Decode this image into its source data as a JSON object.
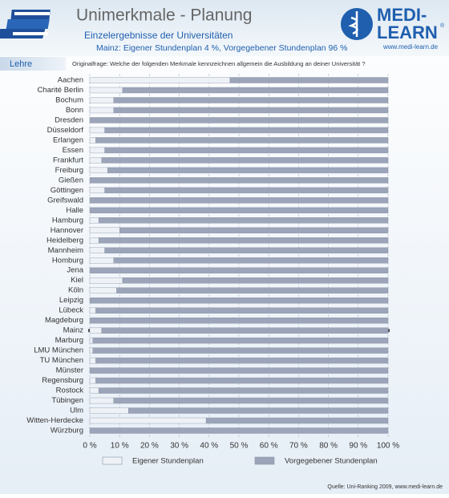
{
  "header": {
    "title": "Unimerkmale - Planung",
    "subtitle": "Einzelergebnisse der Universitäten",
    "note": "Mainz: Eigener Stundenplan 4 %, Vorgegebener Stundenplan 96 %",
    "section": "Lehre",
    "question": "Originalfrage: Welche der folgenden Merkmale kennzeichnen allgemein die Ausbildung an deiner Universität ?",
    "logo_top": "MEDI-",
    "logo_bottom": "LEARN",
    "logo_mark": "®",
    "logo_url": "www.medi-learn.de",
    "source": "Quelle: Uni-Ranking 2009, www.medi-learn.de"
  },
  "chart_data": {
    "type": "stacked-bar-horizontal",
    "categories": [
      "Aachen",
      "Charité Berlin",
      "Bochum",
      "Bonn",
      "Dresden",
      "Düsseldorf",
      "Erlangen",
      "Essen",
      "Frankfurt",
      "Freiburg",
      "Gießen",
      "Göttingen",
      "Greifswald",
      "Halle",
      "Hamburg",
      "Hannover",
      "Heidelberg",
      "Mannheim",
      "Homburg",
      "Jena",
      "Kiel",
      "Köln",
      "Leipzig",
      "Lübeck",
      "Magdeburg",
      "Mainz",
      "Marburg",
      "LMU München",
      "TU München",
      "Münster",
      "Regensburg",
      "Rostock",
      "Tübingen",
      "Ulm",
      "Witten-Herdecke",
      "Würzburg"
    ],
    "series": [
      {
        "name": "Eigener Stundenplan",
        "color": "#eef2f7",
        "values": [
          47,
          11,
          8,
          8,
          0,
          5,
          2,
          5,
          4,
          6,
          0,
          5,
          0,
          0,
          3,
          10,
          3,
          5,
          8,
          0,
          11,
          9,
          0,
          2,
          0,
          4,
          1,
          1,
          2,
          0,
          2,
          3,
          8,
          13,
          39,
          0
        ]
      },
      {
        "name": "Vorgegebener Stundenplan",
        "color": "#9ba4b8",
        "values": [
          53,
          89,
          92,
          92,
          100,
          95,
          98,
          95,
          96,
          94,
          100,
          95,
          100,
          100,
          97,
          90,
          97,
          95,
          92,
          100,
          89,
          91,
          100,
          98,
          100,
          96,
          99,
          99,
          98,
          100,
          98,
          97,
          92,
          87,
          61,
          100
        ]
      }
    ],
    "highlight": 25,
    "xlim": [
      0,
      100
    ],
    "xticks": [
      {
        "value": 0,
        "label": "0 %"
      },
      {
        "value": 10,
        "label": "10 %"
      },
      {
        "value": 20,
        "label": "20 %"
      },
      {
        "value": 30,
        "label": "30 %"
      },
      {
        "value": 40,
        "label": "40 %"
      },
      {
        "value": 50,
        "label": "50 %"
      },
      {
        "value": 60,
        "label": "60 %"
      },
      {
        "value": 70,
        "label": "70 %"
      },
      {
        "value": 80,
        "label": "80 %"
      },
      {
        "value": 90,
        "label": "90 %"
      },
      {
        "value": 100,
        "label": "100 %"
      }
    ],
    "grid": true
  }
}
